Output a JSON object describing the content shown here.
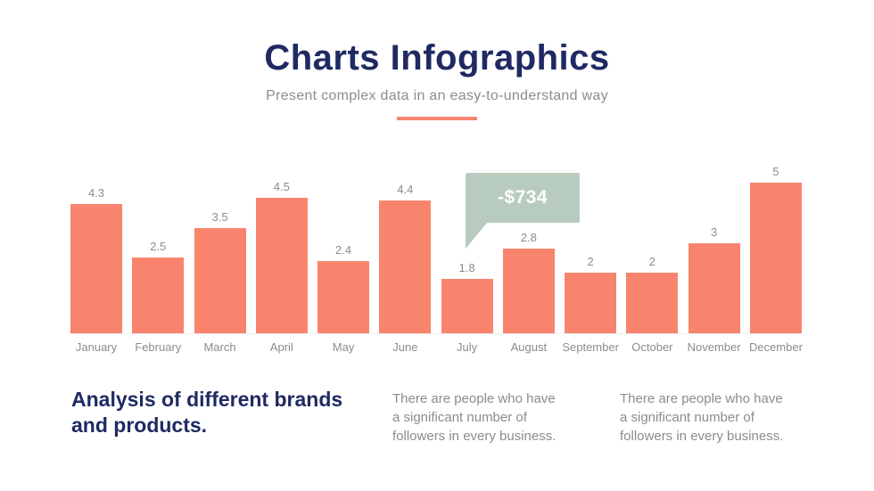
{
  "header": {
    "title": "Charts Infographics",
    "subtitle": "Present complex data in an easy-to-understand way"
  },
  "chart_data": {
    "type": "bar",
    "categories": [
      "January",
      "February",
      "March",
      "April",
      "May",
      "June",
      "July",
      "August",
      "September",
      "October",
      "November",
      "December"
    ],
    "values": [
      4.3,
      2.5,
      3.5,
      4.5,
      2.4,
      4.4,
      1.8,
      2.8,
      2,
      2,
      3,
      5
    ],
    "title": "",
    "xlabel": "",
    "ylabel": "",
    "ylim": [
      0,
      5
    ],
    "grid": false,
    "legend": false,
    "bar_color": "#F9846E",
    "annotation": {
      "label": "-$734",
      "near_category": "July",
      "bubble_color": "#B7CCBE"
    }
  },
  "callout": {
    "label": "-$734"
  },
  "footer": {
    "heading": "Analysis of different brands\nand products.",
    "paragraph_1": "There are people who have\na significant number of\nfollowers in every business.",
    "paragraph_2": "There are people who have\na significant number of\nfollowers in every business."
  },
  "colors": {
    "accent_salmon": "#F9846E",
    "navy": "#1F2A63",
    "gray_text": "#8C8C8C",
    "bubble_green": "#B7CCBE",
    "baseline": "#ECECEC"
  }
}
